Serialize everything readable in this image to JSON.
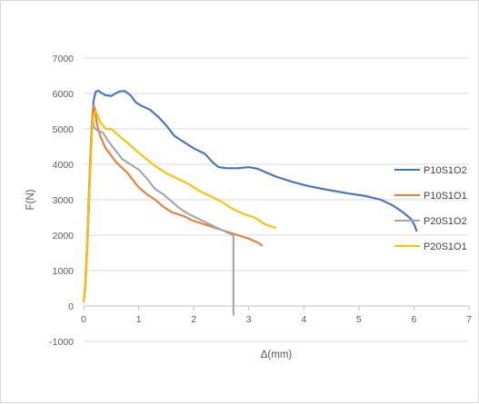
{
  "chart_data": {
    "type": "line",
    "title": "",
    "xlabel": "Δ(mm)",
    "ylabel": "F(N)",
    "xlim": [
      0,
      7
    ],
    "ylim": [
      -1000,
      7000
    ],
    "x_ticks": [
      0,
      1,
      2,
      3,
      4,
      5,
      6,
      7
    ],
    "y_ticks": [
      -1000,
      0,
      1000,
      2000,
      3000,
      4000,
      5000,
      6000,
      7000
    ],
    "grid": "horizontal",
    "legend_position": "right",
    "series": [
      {
        "name": "P10S1O2",
        "color": "#4472C4",
        "points": [
          [
            0,
            100
          ],
          [
            0.03,
            500
          ],
          [
            0.06,
            1400
          ],
          [
            0.09,
            2600
          ],
          [
            0.12,
            3800
          ],
          [
            0.15,
            5000
          ],
          [
            0.18,
            5800
          ],
          [
            0.22,
            6050
          ],
          [
            0.27,
            6080
          ],
          [
            0.32,
            6020
          ],
          [
            0.4,
            5950
          ],
          [
            0.5,
            5930
          ],
          [
            0.58,
            6000
          ],
          [
            0.65,
            6060
          ],
          [
            0.75,
            6070
          ],
          [
            0.85,
            5950
          ],
          [
            0.95,
            5750
          ],
          [
            1.05,
            5650
          ],
          [
            1.2,
            5550
          ],
          [
            1.35,
            5350
          ],
          [
            1.5,
            5100
          ],
          [
            1.65,
            4800
          ],
          [
            1.8,
            4650
          ],
          [
            2.0,
            4450
          ],
          [
            2.2,
            4300
          ],
          [
            2.35,
            4050
          ],
          [
            2.45,
            3920
          ],
          [
            2.6,
            3890
          ],
          [
            2.8,
            3890
          ],
          [
            3.0,
            3920
          ],
          [
            3.15,
            3880
          ],
          [
            3.3,
            3780
          ],
          [
            3.5,
            3650
          ],
          [
            3.8,
            3500
          ],
          [
            4.1,
            3380
          ],
          [
            4.4,
            3290
          ],
          [
            4.8,
            3180
          ],
          [
            5.1,
            3110
          ],
          [
            5.4,
            3000
          ],
          [
            5.6,
            2850
          ],
          [
            5.8,
            2650
          ],
          [
            5.95,
            2450
          ],
          [
            6.02,
            2250
          ],
          [
            6.05,
            2100
          ]
        ]
      },
      {
        "name": "P10S1O1",
        "color": "#ED7D31",
        "points": [
          [
            0,
            100
          ],
          [
            0.03,
            600
          ],
          [
            0.06,
            1600
          ],
          [
            0.09,
            3000
          ],
          [
            0.12,
            4200
          ],
          [
            0.15,
            5200
          ],
          [
            0.18,
            5650
          ],
          [
            0.2,
            5600
          ],
          [
            0.24,
            5150
          ],
          [
            0.3,
            4800
          ],
          [
            0.4,
            4450
          ],
          [
            0.5,
            4250
          ],
          [
            0.6,
            4050
          ],
          [
            0.7,
            3900
          ],
          [
            0.8,
            3750
          ],
          [
            0.9,
            3550
          ],
          [
            1.0,
            3350
          ],
          [
            1.15,
            3150
          ],
          [
            1.3,
            3000
          ],
          [
            1.45,
            2800
          ],
          [
            1.6,
            2650
          ],
          [
            1.8,
            2550
          ],
          [
            2.0,
            2400
          ],
          [
            2.2,
            2300
          ],
          [
            2.4,
            2200
          ],
          [
            2.6,
            2100
          ],
          [
            2.8,
            2000
          ],
          [
            3.0,
            1900
          ],
          [
            3.15,
            1800
          ],
          [
            3.25,
            1700
          ]
        ]
      },
      {
        "name": "P20S1O2",
        "color": "#A5A5A5",
        "points": [
          [
            0,
            100
          ],
          [
            0.03,
            600
          ],
          [
            0.06,
            1600
          ],
          [
            0.09,
            2900
          ],
          [
            0.12,
            4100
          ],
          [
            0.14,
            4900
          ],
          [
            0.16,
            5300
          ],
          [
            0.19,
            5050
          ],
          [
            0.25,
            4950
          ],
          [
            0.35,
            4900
          ],
          [
            0.45,
            4650
          ],
          [
            0.55,
            4450
          ],
          [
            0.7,
            4150
          ],
          [
            0.85,
            4000
          ],
          [
            1.0,
            3850
          ],
          [
            1.15,
            3600
          ],
          [
            1.3,
            3300
          ],
          [
            1.45,
            3150
          ],
          [
            1.6,
            2950
          ],
          [
            1.75,
            2750
          ],
          [
            1.9,
            2600
          ],
          [
            2.1,
            2450
          ],
          [
            2.3,
            2300
          ],
          [
            2.5,
            2150
          ],
          [
            2.65,
            2050
          ],
          [
            2.72,
            2000
          ],
          [
            2.72,
            -270
          ]
        ]
      },
      {
        "name": "P20S1O1",
        "color": "#FFC000",
        "points": [
          [
            0,
            100
          ],
          [
            0.03,
            500
          ],
          [
            0.06,
            1400
          ],
          [
            0.09,
            2600
          ],
          [
            0.12,
            3800
          ],
          [
            0.15,
            4800
          ],
          [
            0.18,
            5400
          ],
          [
            0.22,
            5500
          ],
          [
            0.3,
            5200
          ],
          [
            0.4,
            5000
          ],
          [
            0.5,
            5000
          ],
          [
            0.65,
            4800
          ],
          [
            0.8,
            4600
          ],
          [
            0.95,
            4400
          ],
          [
            1.1,
            4200
          ],
          [
            1.3,
            3950
          ],
          [
            1.5,
            3750
          ],
          [
            1.7,
            3600
          ],
          [
            1.9,
            3450
          ],
          [
            2.1,
            3250
          ],
          [
            2.3,
            3100
          ],
          [
            2.5,
            2950
          ],
          [
            2.7,
            2750
          ],
          [
            2.9,
            2600
          ],
          [
            3.1,
            2500
          ],
          [
            3.3,
            2300
          ],
          [
            3.5,
            2200
          ]
        ]
      }
    ]
  }
}
